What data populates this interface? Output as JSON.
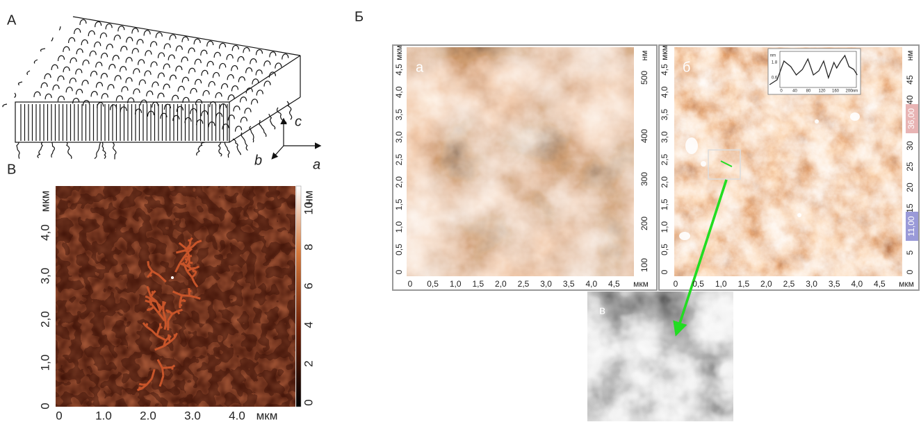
{
  "schematic": {
    "label": "А",
    "axes": {
      "c": "c",
      "b": "b",
      "a": "a"
    }
  },
  "afm_left": {
    "label": "В",
    "y_ticks": [
      "0",
      "1,0",
      "2,0",
      "3,0",
      "4,0"
    ],
    "y_unit": "мкм",
    "x_ticks": [
      "0",
      "1.0",
      "2.0",
      "3.0",
      "4.0"
    ],
    "x_unit": "мкм",
    "colorbar_ticks": [
      "0",
      "2",
      "4",
      "6",
      "8",
      "10"
    ],
    "colorbar_unit": "нм"
  },
  "afm_pair": {
    "label": "Б",
    "a": {
      "label": "а",
      "y_ticks": [
        "0",
        "0,5",
        "1,0",
        "1,5",
        "2,0",
        "2,5",
        "3,0",
        "3,5",
        "4,0",
        "4,5"
      ],
      "y_unit": "мкм",
      "x_ticks": [
        "0",
        "0,5",
        "1,0",
        "1,5",
        "2,0",
        "2,5",
        "3,0",
        "3,5",
        "4,0",
        "4,5"
      ],
      "x_unit": "мкм",
      "colorbar_ticks": [
        "100",
        "200",
        "300",
        "400",
        "500"
      ],
      "colorbar_unit": "нм"
    },
    "b": {
      "label": "б",
      "y_ticks": [
        "0",
        "0,5",
        "1,0",
        "1,5",
        "2,0",
        "2,5",
        "3,0",
        "3,5",
        "4,0",
        "4,5"
      ],
      "y_unit": "мкм",
      "x_ticks": [
        "0",
        "0,5",
        "1,0",
        "1,5",
        "2,0",
        "2,5",
        "3,0",
        "3,5",
        "4,0",
        "4,5"
      ],
      "x_unit": "мкм",
      "colorbar_ticks": [
        "0",
        "5",
        "15",
        "20",
        "25",
        "30",
        "40",
        "45"
      ],
      "colorbar_unit": "нм",
      "colorbar_high": "36,00",
      "colorbar_low": "11,00",
      "inset": {
        "y_unit": "nm",
        "y_ticks": [
          "1.8",
          "0.6"
        ],
        "x_ticks": [
          "0",
          "40",
          "80",
          "120",
          "160",
          "200"
        ],
        "x_unit": "nm"
      }
    },
    "c": {
      "label": "в"
    }
  }
}
